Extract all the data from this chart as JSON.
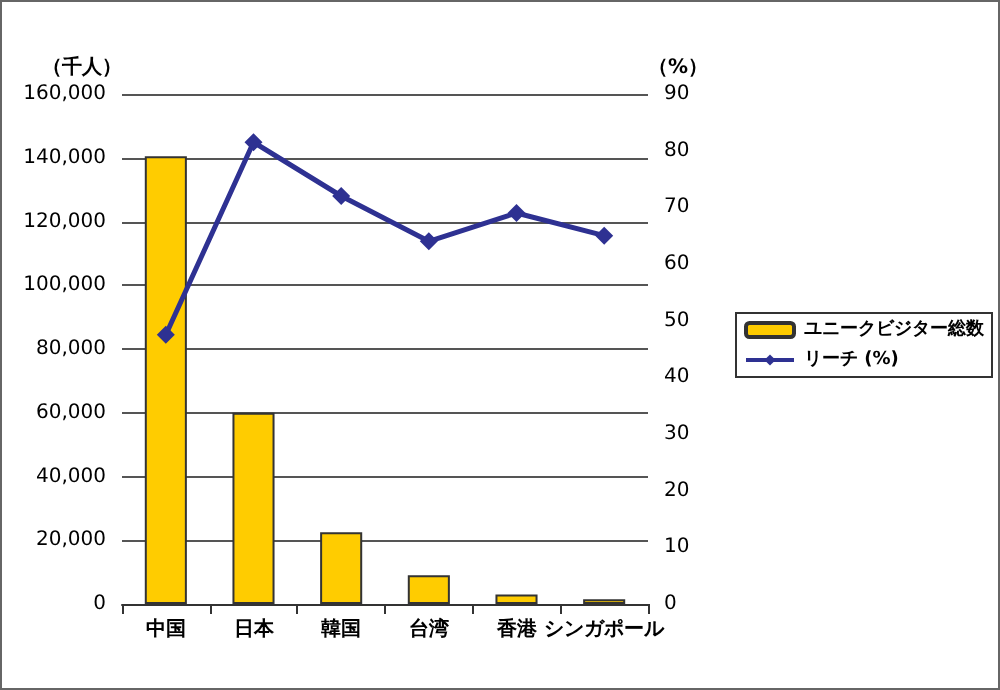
{
  "chart_data": {
    "type": "bar",
    "categories": [
      "中国",
      "日本",
      "韓国",
      "台湾",
      "香港",
      "シンガポール"
    ],
    "series": [
      {
        "name": "ユニークビジター総数",
        "color": "#ffcc00",
        "values": [
          140500,
          60000,
          22500,
          9000,
          3000,
          1500
        ]
      },
      {
        "name": "リーチ (%)",
        "type": "line",
        "axis": "y2",
        "color": "#2e3192",
        "marker": "diamond",
        "values": [
          47.5,
          81.5,
          72,
          64,
          69,
          65
        ]
      }
    ],
    "ylabel": "（千人）",
    "y2label": "（%）",
    "ylim": [
      0,
      160000
    ],
    "yticks": [
      0,
      {
        "value": 20000,
        "label": "20,000"
      },
      {
        "value": 40000,
        "label": "40,000"
      },
      {
        "value": 60000,
        "label": "60,000"
      },
      {
        "value": 80000,
        "label": "80,000"
      },
      {
        "value": 100000,
        "label": "100,000"
      },
      {
        "value": 120000,
        "label": "120,000"
      },
      {
        "value": 140000,
        "label": "140,000"
      },
      {
        "value": 160000,
        "label": "160,000"
      }
    ],
    "y2lim": [
      0,
      90
    ],
    "y2ticks": [
      0,
      10,
      20,
      30,
      40,
      50,
      60,
      70,
      80,
      90
    ],
    "grid": "y",
    "legend": "right"
  }
}
